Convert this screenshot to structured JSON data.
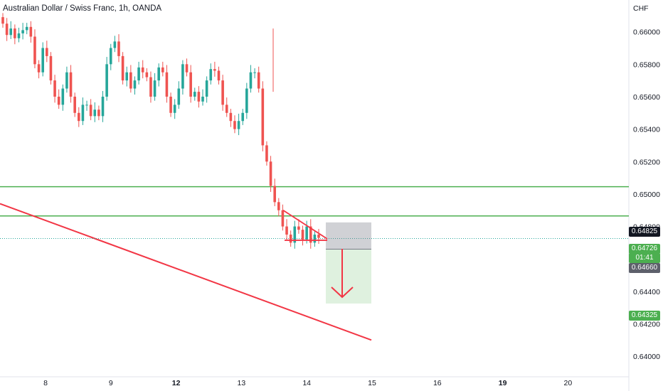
{
  "header": {
    "title": "Australian Dollar / Swiss Franc, 1h, OANDA"
  },
  "colors": {
    "up": "#26a69a",
    "down": "#ef5350",
    "level": "#4caf50",
    "trend": "#f23645",
    "price_line": "#26a69a"
  },
  "chart_data": {
    "type": "candlestick",
    "title": "Australian Dollar / Swiss Franc, 1h, OANDA",
    "currency_label": "CHF",
    "y_ticks": [
      "0.66000",
      "0.65800",
      "0.65600",
      "0.65400",
      "0.65200",
      "0.65000",
      "0.64800",
      "0.64600",
      "0.64400",
      "0.64200",
      "0.64000"
    ],
    "y_tick_values": [
      0.66,
      0.658,
      0.656,
      0.654,
      0.652,
      0.65,
      0.648,
      0.646,
      0.644,
      0.642,
      0.64
    ],
    "ylim": [
      0.6397,
      0.6613
    ],
    "x_ticks": [
      {
        "label": "8",
        "pos": 1
      },
      {
        "label": "9",
        "pos": 2
      },
      {
        "label": "12",
        "pos": 3,
        "bold": true
      },
      {
        "label": "13",
        "pos": 4
      },
      {
        "label": "14",
        "pos": 5
      },
      {
        "label": "15",
        "pos": 6
      },
      {
        "label": "16",
        "pos": 7
      },
      {
        "label": "19",
        "pos": 8,
        "bold": true
      },
      {
        "label": "20",
        "pos": 9
      }
    ],
    "close_series": [
      0.6605,
      0.6598,
      0.6602,
      0.6596,
      0.6599,
      0.6601,
      0.6603,
      0.6597,
      0.658,
      0.6575,
      0.659,
      0.6585,
      0.657,
      0.656,
      0.6555,
      0.6565,
      0.6575,
      0.656,
      0.655,
      0.6545,
      0.6555,
      0.6555,
      0.6548,
      0.6552,
      0.6548,
      0.656,
      0.658,
      0.659,
      0.6594,
      0.6585,
      0.657,
      0.6575,
      0.6565,
      0.657,
      0.6578,
      0.6575,
      0.6572,
      0.656,
      0.657,
      0.6578,
      0.6575,
      0.656,
      0.655,
      0.6555,
      0.6565,
      0.658,
      0.6575,
      0.656,
      0.6563,
      0.6557,
      0.656,
      0.657,
      0.6577,
      0.6576,
      0.657,
      0.6555,
      0.655,
      0.6545,
      0.654,
      0.6545,
      0.655,
      0.6565,
      0.6575,
      0.6575,
      0.6565,
      0.653,
      0.652,
      0.6505,
      0.6495,
      0.649,
      0.648,
      0.6475,
      0.647,
      0.648,
      0.6478,
      0.6472,
      0.648,
      0.647,
      0.6475,
      0.6473
    ],
    "levels": [
      0.65045,
      0.64865
    ],
    "current_price": 0.64726,
    "current_price_label": "0.64726",
    "countdown": "01:41",
    "position": {
      "entry": 0.6466,
      "stop": 0.64825,
      "target": 0.64325,
      "entry_label": "0.64660",
      "stop_label": "0.64825",
      "target_label": "0.64325"
    },
    "trendline": {
      "start": 0.6494,
      "end": 0.641
    },
    "triangle": {
      "upper_start": 0.649,
      "lower": 0.64715
    },
    "grid": false,
    "legend": "none"
  }
}
